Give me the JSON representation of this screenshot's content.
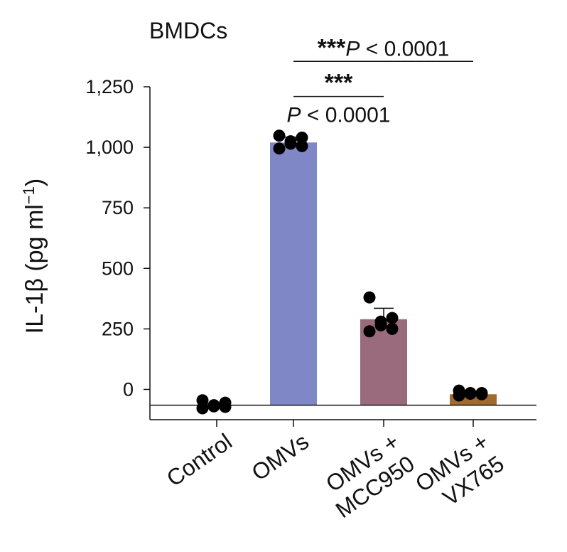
{
  "chart_data": {
    "type": "bar",
    "title": "BMDCs",
    "ylabel": "IL-1β (pg ml",
    "ylabel_sup": "−1",
    "ylabel_close": ")",
    "ylim": [
      -125,
      1250
    ],
    "yticks": [
      0,
      250,
      500,
      750,
      1000,
      1250
    ],
    "ytick_labels": [
      "0",
      "250",
      "500",
      "750",
      "1,000",
      "1,250"
    ],
    "categories": [
      {
        "lines": [
          "Control"
        ]
      },
      {
        "lines": [
          "OMVs"
        ]
      },
      {
        "lines": [
          "OMVs +",
          "MCC950"
        ]
      },
      {
        "lines": [
          "OMVs +",
          "VX765"
        ]
      }
    ],
    "baseline_value": -65,
    "values": [
      -65,
      1020,
      290,
      -20
    ],
    "errors": [
      5,
      22,
      45,
      7
    ],
    "colors": [
      "#ffffff",
      "#7f87c6",
      "#9a6a7d",
      "#a06a2a"
    ],
    "points": [
      [
        -45,
        -55,
        -65,
        -70,
        -72,
        -78
      ],
      [
        995,
        1005,
        1015,
        1025,
        1040,
        1048
      ],
      [
        240,
        250,
        265,
        280,
        295,
        380
      ],
      [
        -25,
        -20,
        -18,
        -15,
        -15,
        -5
      ]
    ],
    "annotations": [
      {
        "from": 1,
        "to": 2,
        "stars": "***",
        "p": "< 0.0001",
        "p_prefix": "P",
        "level": 1210,
        "p_below": true
      },
      {
        "from": 1,
        "to": 3,
        "stars": "***",
        "p": "< 0.0001",
        "p_prefix": "P",
        "level": 1355,
        "p_below": false
      }
    ]
  }
}
